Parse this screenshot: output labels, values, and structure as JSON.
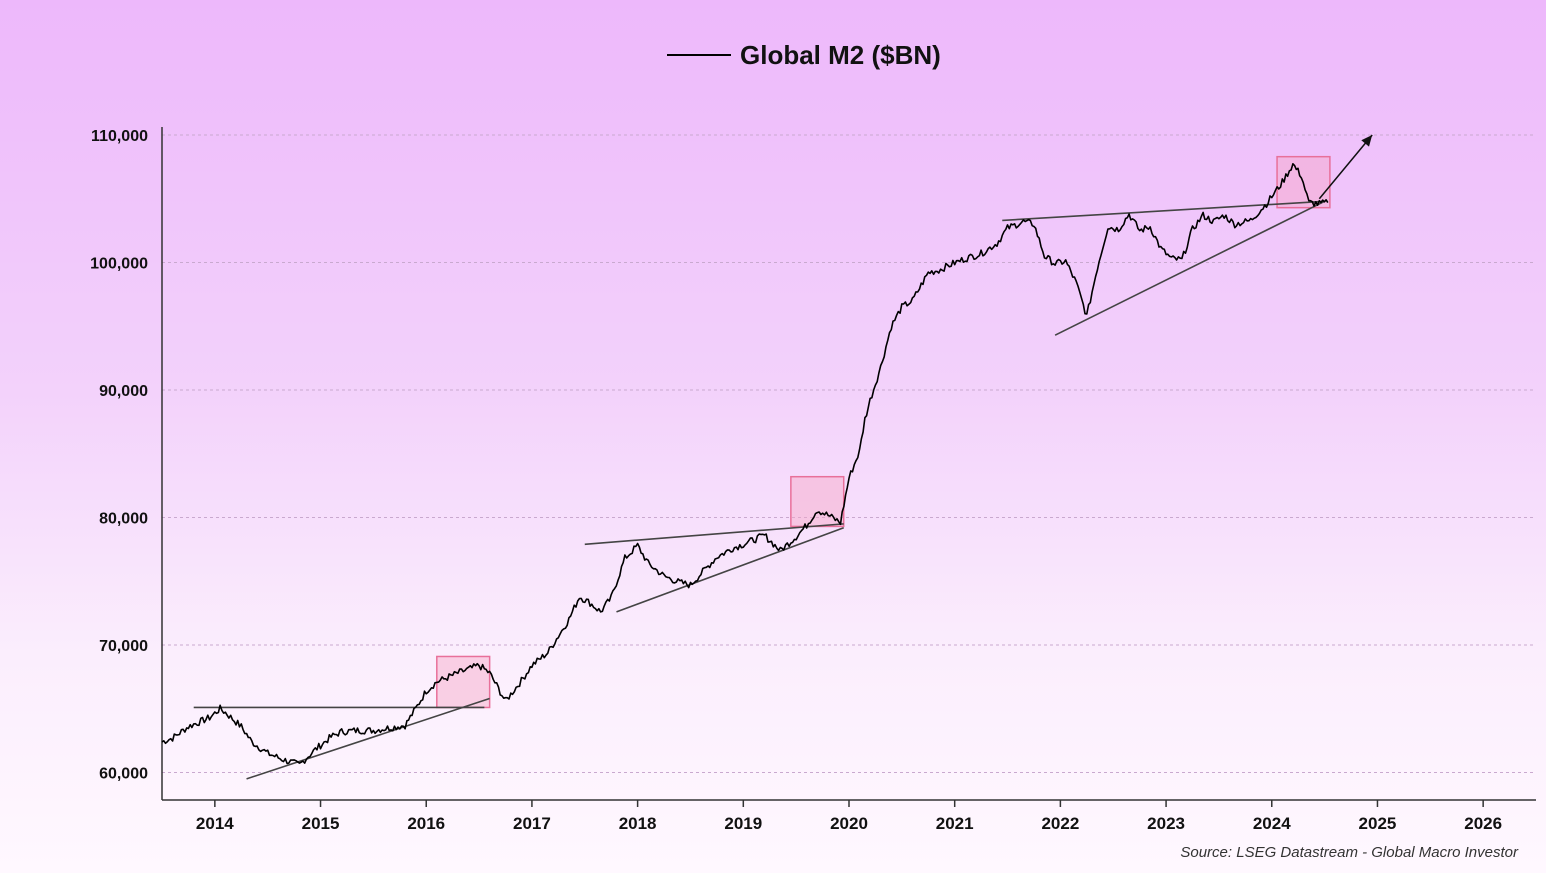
{
  "legend": {
    "label": "Global M2 ($BN)"
  },
  "source": "Source: LSEG Datastream - Global Macro Investor",
  "colors": {
    "line": "#000000",
    "trend": "#444444",
    "box_stroke": "#e8709a",
    "box_fill": "#f7a6c6",
    "grid": "#c9a9cf"
  },
  "chart_data": {
    "type": "line",
    "ylim": [
      58000,
      110000
    ],
    "xlim": [
      2013.5,
      2026.5
    ],
    "yticks": [
      60000,
      70000,
      80000,
      90000,
      100000,
      110000
    ],
    "ytick_labels": [
      "60,000",
      "70,000",
      "80,000",
      "90,000",
      "100,000",
      "110,000"
    ],
    "xtick_labels": [
      "2014",
      "2015",
      "2016",
      "2017",
      "2018",
      "2019",
      "2020",
      "2021",
      "2022",
      "2023",
      "2024",
      "2025",
      "2026"
    ],
    "grid": "horizontal-dashed",
    "legend_position": "top-center",
    "series": [
      {
        "name": "Global M2 ($BN)",
        "x": [
          2013.5,
          2013.6,
          2013.75,
          2013.95,
          2014.05,
          2014.1,
          2014.25,
          2014.35,
          2014.5,
          2014.65,
          2014.8,
          2014.95,
          2015.1,
          2015.2,
          2015.35,
          2015.5,
          2015.65,
          2015.8,
          2015.9,
          2016.0,
          2016.1,
          2016.3,
          2016.5,
          2016.6,
          2016.75,
          2016.9,
          2017.0,
          2017.15,
          2017.35,
          2017.45,
          2017.55,
          2017.65,
          2017.75,
          2017.88,
          2018.0,
          2018.1,
          2018.25,
          2018.4,
          2018.5,
          2018.6,
          2018.75,
          2018.9,
          2019.0,
          2019.2,
          2019.35,
          2019.5,
          2019.6,
          2019.7,
          2019.82,
          2019.92,
          2020.0,
          2020.1,
          2020.15,
          2020.2,
          2020.3,
          2020.4,
          2020.5,
          2020.6,
          2020.75,
          2020.85,
          2020.95,
          2021.1,
          2021.25,
          2021.4,
          2021.5,
          2021.65,
          2021.75,
          2021.85,
          2021.95,
          2022.05,
          2022.15,
          2022.25,
          2022.35,
          2022.45,
          2022.55,
          2022.65,
          2022.75,
          2022.85,
          2022.95,
          2023.05,
          2023.15,
          2023.25,
          2023.35,
          2023.45,
          2023.55,
          2023.65,
          2023.8,
          2023.95,
          2024.1,
          2024.2,
          2024.28,
          2024.35,
          2024.45,
          2024.53
        ],
        "y": [
          62400,
          62700,
          63600,
          64300,
          65000,
          64700,
          63600,
          62400,
          61500,
          61000,
          60600,
          61800,
          62800,
          63200,
          63300,
          63300,
          63500,
          63700,
          65000,
          66400,
          67100,
          67800,
          68400,
          67800,
          65600,
          67200,
          68400,
          69400,
          72000,
          73800,
          73300,
          72600,
          73700,
          76800,
          77800,
          76400,
          75400,
          74900,
          74700,
          75600,
          76900,
          77600,
          77900,
          78600,
          77400,
          78500,
          79400,
          80600,
          80100,
          79600,
          83100,
          85200,
          87700,
          89200,
          91800,
          95000,
          96500,
          97000,
          99200,
          99400,
          99800,
          100300,
          100700,
          101500,
          102700,
          103200,
          103000,
          100500,
          99900,
          100100,
          98400,
          95800,
          99600,
          102800,
          102600,
          103800,
          102500,
          102800,
          101100,
          100300,
          100200,
          102600,
          103700,
          103200,
          103700,
          103000,
          103300,
          104600,
          106300,
          107700,
          106800,
          104700,
          104600,
          104700
        ]
      }
    ],
    "trendlines": [
      {
        "x": [
          2013.8,
          2016.55
        ],
        "y": [
          65100,
          65100
        ]
      },
      {
        "x": [
          2014.3,
          2016.6
        ],
        "y": [
          59500,
          65800
        ]
      },
      {
        "x": [
          2017.5,
          2019.95
        ],
        "y": [
          77900,
          79500
        ]
      },
      {
        "x": [
          2017.8,
          2019.95
        ],
        "y": [
          72600,
          79200
        ]
      },
      {
        "x": [
          2021.45,
          2024.5
        ],
        "y": [
          103300,
          104800
        ]
      },
      {
        "x": [
          2021.95,
          2024.5
        ],
        "y": [
          94300,
          104800
        ]
      }
    ],
    "highlight_boxes": [
      {
        "x": [
          2016.1,
          2016.6
        ],
        "y": [
          65100,
          69100
        ]
      },
      {
        "x": [
          2019.45,
          2019.95
        ],
        "y": [
          79300,
          83200
        ]
      },
      {
        "x": [
          2024.05,
          2024.55
        ],
        "y": [
          104300,
          108300
        ]
      }
    ],
    "arrow": {
      "x": [
        2024.45,
        2024.95
      ],
      "y": [
        105000,
        110000
      ]
    }
  }
}
